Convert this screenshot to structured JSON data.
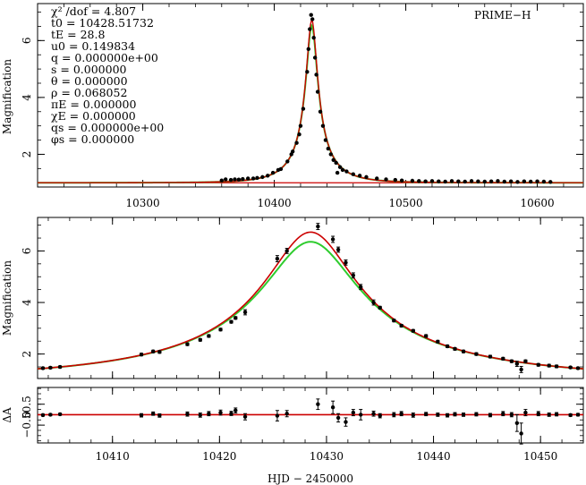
{
  "chart_data": [
    {
      "type": "line",
      "panel": "overview",
      "ylabel": "Magnification",
      "title": "",
      "xlim": [
        10220,
        10635
      ],
      "ylim": [
        0.85,
        7.3
      ],
      "x_ticks": [
        "10300",
        "10400",
        "10500",
        "10600"
      ],
      "x_tick_values": [
        10300,
        10400,
        10500,
        10600
      ],
      "y_ticks": [
        "2",
        "4",
        "6"
      ],
      "y_tick_values": [
        2,
        4,
        6
      ],
      "annotation": "PRIME−H",
      "params_text": [
        "χ² /dof = 4.807",
        "t0 = 10428.51732",
        "tE = 28.8",
        "u0 = 0.149834",
        "q = 0.000000e+00",
        "s = 0.000000",
        "θ = 0.000000",
        "ρ = 0.068052",
        "πE = 0.000000",
        "χE = 0.000000",
        "qs = 0.000000e+00",
        "φs = 0.000000"
      ],
      "model": {
        "t0": 10428.51732,
        "tE": 28.8,
        "u0": 0.149834,
        "rho": 0.068052,
        "baseline": 1.0
      },
      "series": [
        {
          "name": "model",
          "color": "#cc0000"
        },
        {
          "name": "model-alt",
          "color": "#2ecc2e"
        },
        {
          "name": "baseline",
          "color": "#cc0000"
        }
      ],
      "data_points": [
        [
          10360,
          1.08
        ],
        [
          10363,
          1.12
        ],
        [
          10367,
          1.1
        ],
        [
          10370,
          1.12
        ],
        [
          10373,
          1.11
        ],
        [
          10376,
          1.13
        ],
        [
          10380,
          1.15
        ],
        [
          10384,
          1.15
        ],
        [
          10387,
          1.17
        ],
        [
          10391,
          1.2
        ],
        [
          10395,
          1.25
        ],
        [
          10399,
          1.35
        ],
        [
          10403,
          1.45
        ],
        [
          10405,
          1.48
        ],
        [
          10410,
          1.75
        ],
        [
          10413,
          2.0
        ],
        [
          10414,
          2.1
        ],
        [
          10417,
          2.4
        ],
        [
          10419,
          2.7
        ],
        [
          10420,
          3.0
        ],
        [
          10422,
          3.6
        ],
        [
          10425,
          4.9
        ],
        [
          10426,
          5.7
        ],
        [
          10427,
          6.4
        ],
        [
          10428,
          6.9
        ],
        [
          10429,
          6.75
        ],
        [
          10430,
          6.1
        ],
        [
          10431,
          5.4
        ],
        [
          10432,
          4.8
        ],
        [
          10433,
          4.2
        ],
        [
          10435,
          3.5
        ],
        [
          10437,
          3.0
        ],
        [
          10439,
          2.5
        ],
        [
          10441,
          2.2
        ],
        [
          10443,
          2.0
        ],
        [
          10445,
          1.8
        ],
        [
          10447,
          1.7
        ],
        [
          10448,
          1.35
        ],
        [
          10450,
          1.55
        ],
        [
          10452,
          1.45
        ],
        [
          10455,
          1.4
        ],
        [
          10460,
          1.3
        ],
        [
          10465,
          1.25
        ],
        [
          10470,
          1.2
        ],
        [
          10478,
          1.15
        ],
        [
          10485,
          1.12
        ],
        [
          10492,
          1.1
        ],
        [
          10497,
          1.08
        ],
        [
          10505,
          1.07
        ],
        [
          10510,
          1.06
        ],
        [
          10515,
          1.05
        ],
        [
          10520,
          1.06
        ],
        [
          10525,
          1.05
        ],
        [
          10530,
          1.04
        ],
        [
          10535,
          1.06
        ],
        [
          10540,
          1.05
        ],
        [
          10545,
          1.04
        ],
        [
          10550,
          1.06
        ],
        [
          10555,
          1.05
        ],
        [
          10560,
          1.04
        ],
        [
          10565,
          1.05
        ],
        [
          10570,
          1.06
        ],
        [
          10575,
          1.04
        ],
        [
          10580,
          1.05
        ],
        [
          10585,
          1.03
        ],
        [
          10590,
          1.05
        ],
        [
          10595,
          1.04
        ],
        [
          10600,
          1.05
        ],
        [
          10605,
          1.04
        ],
        [
          10610,
          1.03
        ]
      ]
    },
    {
      "type": "line",
      "panel": "zoom",
      "ylabel": "Magnification",
      "title": "",
      "xlim": [
        10403,
        10454
      ],
      "ylim": [
        1.05,
        7.3
      ],
      "y_ticks": [
        "2",
        "4",
        "6"
      ],
      "y_tick_values": [
        2,
        4,
        6
      ],
      "model": {
        "t0": 10428.51732,
        "tE": 28.8,
        "u0": 0.149834,
        "rho": 0.068052,
        "baseline": 1.0
      },
      "series": [
        {
          "name": "model",
          "color": "#cc0000"
        },
        {
          "name": "model-alt",
          "color": "#2ecc2e"
        }
      ],
      "data_points": [
        [
          10403.5,
          1.45,
          0.04
        ],
        [
          10404.2,
          1.47,
          0.04
        ],
        [
          10405.1,
          1.5,
          0.04
        ],
        [
          10412.7,
          1.98,
          0.05
        ],
        [
          10413.8,
          2.1,
          0.05
        ],
        [
          10414.4,
          2.08,
          0.05
        ],
        [
          10417.0,
          2.38,
          0.05
        ],
        [
          10418.2,
          2.55,
          0.05
        ],
        [
          10419.0,
          2.7,
          0.05
        ],
        [
          10420.1,
          2.95,
          0.05
        ],
        [
          10421.1,
          3.25,
          0.05
        ],
        [
          10421.5,
          3.4,
          0.05
        ],
        [
          10422.4,
          3.62,
          0.1
        ],
        [
          10425.4,
          5.7,
          0.12
        ],
        [
          10426.3,
          6.0,
          0.1
        ],
        [
          10429.2,
          6.95,
          0.12
        ],
        [
          10430.6,
          6.45,
          0.12
        ],
        [
          10431.1,
          6.05,
          0.1
        ],
        [
          10431.8,
          5.55,
          0.1
        ],
        [
          10432.5,
          5.05,
          0.1
        ],
        [
          10433.2,
          4.6,
          0.1
        ],
        [
          10434.4,
          4.0,
          0.1
        ],
        [
          10435.0,
          3.8,
          0.05
        ],
        [
          10436.3,
          3.3,
          0.05
        ],
        [
          10437.0,
          3.1,
          0.05
        ],
        [
          10438.1,
          2.9,
          0.05
        ],
        [
          10439.3,
          2.7,
          0.05
        ],
        [
          10440.4,
          2.48,
          0.05
        ],
        [
          10441.3,
          2.3,
          0.05
        ],
        [
          10442.0,
          2.2,
          0.05
        ],
        [
          10442.8,
          2.1,
          0.05
        ],
        [
          10444.0,
          2.0,
          0.05
        ],
        [
          10445.3,
          1.9,
          0.05
        ],
        [
          10446.5,
          1.82,
          0.05
        ],
        [
          10447.3,
          1.72,
          0.05
        ],
        [
          10447.8,
          1.62,
          0.1
        ],
        [
          10448.2,
          1.4,
          0.12
        ],
        [
          10448.6,
          1.72,
          0.05
        ],
        [
          10449.8,
          1.58,
          0.05
        ],
        [
          10450.8,
          1.55,
          0.05
        ],
        [
          10451.5,
          1.52,
          0.05
        ],
        [
          10452.8,
          1.48,
          0.04
        ],
        [
          10453.5,
          1.45,
          0.04
        ]
      ]
    },
    {
      "type": "scatter",
      "panel": "residuals",
      "ylabel": "ΔA",
      "xlabel": "HJD − 2450000",
      "xlim": [
        10403,
        10454
      ],
      "ylim": [
        -1.35,
        1.3
      ],
      "x_ticks": [
        "10410",
        "10420",
        "10430",
        "10440",
        "10450"
      ],
      "x_tick_values": [
        10410,
        10420,
        10430,
        10440,
        10450
      ],
      "y_ticks": [
        "0.5",
        "0",
        "−0.5"
      ],
      "y_tick_values": [
        0.5,
        0,
        -0.5
      ],
      "zero_line_color": "#cc0000",
      "data_points": [
        [
          10403.5,
          -0.02,
          0.05
        ],
        [
          10404.2,
          0.0,
          0.05
        ],
        [
          10405.1,
          0.02,
          0.05
        ],
        [
          10412.7,
          -0.03,
          0.08
        ],
        [
          10413.8,
          0.05,
          0.08
        ],
        [
          10414.4,
          -0.04,
          0.08
        ],
        [
          10417.0,
          0.03,
          0.1
        ],
        [
          10418.2,
          -0.02,
          0.1
        ],
        [
          10419.0,
          0.05,
          0.1
        ],
        [
          10420.1,
          0.1,
          0.12
        ],
        [
          10421.1,
          0.06,
          0.1
        ],
        [
          10421.5,
          0.2,
          0.12
        ],
        [
          10422.4,
          -0.1,
          0.15
        ],
        [
          10425.4,
          -0.05,
          0.25
        ],
        [
          10426.3,
          0.05,
          0.15
        ],
        [
          10429.2,
          0.5,
          0.25
        ],
        [
          10430.6,
          0.35,
          0.3
        ],
        [
          10431.1,
          -0.15,
          0.2
        ],
        [
          10431.8,
          -0.35,
          0.2
        ],
        [
          10432.5,
          0.1,
          0.15
        ],
        [
          10433.2,
          0.0,
          0.25
        ],
        [
          10434.4,
          0.05,
          0.12
        ],
        [
          10435.0,
          -0.05,
          0.1
        ],
        [
          10436.3,
          0.0,
          0.1
        ],
        [
          10437.0,
          0.05,
          0.1
        ],
        [
          10438.1,
          -0.02,
          0.1
        ],
        [
          10439.3,
          0.03,
          0.08
        ],
        [
          10440.4,
          0.0,
          0.08
        ],
        [
          10441.3,
          -0.03,
          0.08
        ],
        [
          10442.0,
          0.02,
          0.08
        ],
        [
          10442.8,
          0.0,
          0.08
        ],
        [
          10444.0,
          0.02,
          0.08
        ],
        [
          10445.3,
          -0.02,
          0.08
        ],
        [
          10446.5,
          0.05,
          0.1
        ],
        [
          10447.3,
          0.0,
          0.1
        ],
        [
          10447.8,
          -0.4,
          0.4
        ],
        [
          10448.2,
          -0.9,
          0.5
        ],
        [
          10448.6,
          0.1,
          0.15
        ],
        [
          10449.8,
          0.05,
          0.1
        ],
        [
          10450.8,
          0.0,
          0.08
        ],
        [
          10451.5,
          0.02,
          0.08
        ],
        [
          10452.8,
          -0.02,
          0.06
        ],
        [
          10453.5,
          0.0,
          0.06
        ]
      ]
    }
  ]
}
